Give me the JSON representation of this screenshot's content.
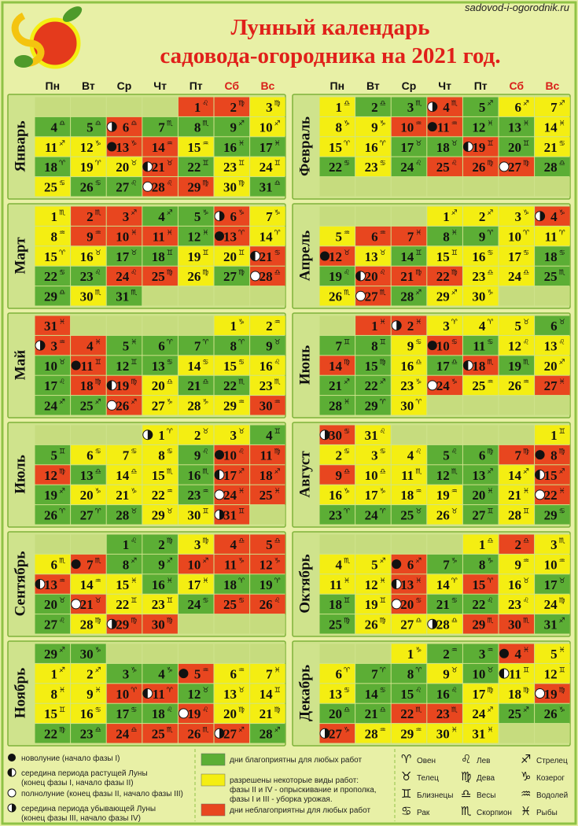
{
  "site": "sadovod-i-ogorodnik.ru",
  "title": [
    "Лунный календарь",
    "садовода-огородника на 2021 год."
  ],
  "weekdays": [
    "Пн",
    "Вт",
    "Ср",
    "Чт",
    "Пт",
    "Сб",
    "Вс"
  ],
  "weekend_color": "#d8201a",
  "day_types": [
    {
      "color": "#5cae35",
      "lines": [
        "дни благоприятны для любых работ"
      ]
    },
    {
      "color": "#f4ee12",
      "lines": [
        "разрешены некоторые виды работ:",
        "фазы II и IV - опрыскивание и прополка,",
        "фазы I и III - уборка урожая."
      ]
    },
    {
      "color": "#e8461f",
      "lines": [
        "дни неблагоприятны для любых работ"
      ]
    }
  ],
  "phase_legend": {
    "new_moon": [
      "новолуние (начало фазы I)"
    ],
    "waxing": [
      "середина периода растущей Луны",
      "(конец фазы I, начало фазы II)"
    ],
    "full_moon": [
      "полнолуние (конец фазы II, начало фазы III)"
    ],
    "waning": [
      "середина периода убывающей Луны",
      "(конец фазы III, начало фазы IV)"
    ]
  },
  "zodiac": [
    {
      "symbol": "♈",
      "name": "Овен"
    },
    {
      "symbol": "♉",
      "name": "Телец"
    },
    {
      "symbol": "♊",
      "name": "Близнецы"
    },
    {
      "symbol": "♋",
      "name": "Рак"
    },
    {
      "symbol": "♌",
      "name": "Лев"
    },
    {
      "symbol": "♍",
      "name": "Дева"
    },
    {
      "symbol": "♎",
      "name": "Весы"
    },
    {
      "symbol": "♏",
      "name": "Скорпион"
    },
    {
      "symbol": "♐",
      "name": "Стрелец"
    },
    {
      "symbol": "♑",
      "name": "Козерог"
    },
    {
      "symbol": "♒",
      "name": "Водолей"
    },
    {
      "symbol": "♓",
      "name": "Рыбы"
    }
  ],
  "months": [
    {
      "name": "Январь",
      "days": [
        1,
        2,
        3,
        4,
        5,
        6,
        7,
        8,
        9,
        10,
        11,
        12,
        13,
        14,
        15,
        16,
        17,
        18,
        19,
        20,
        21,
        22,
        23,
        24,
        25,
        26,
        27,
        28,
        29,
        30,
        31
      ],
      "signs": "♌♍♍♎♎♎♏♏♐♐♐♑♑♒♒♓♓♈♈♉♉♊♊♊♋♋♌♌♍♍♎",
      "types": "2210020001112210001120111002210",
      "new_moon": [
        13
      ],
      "waxing": [
        21
      ],
      "full_moon": [
        28
      ],
      "waning": [
        6
      ]
    },
    {
      "name": "Февраль",
      "days": [
        1,
        2,
        3,
        4,
        5,
        6,
        7,
        8,
        9,
        10,
        11,
        12,
        13,
        14,
        15,
        16,
        17,
        18,
        19,
        20,
        21,
        22,
        23,
        24,
        25,
        26,
        27,
        28
      ],
      "signs": "♎♎♏♏♐♐♐♑♑♒♒♓♓♓♈♈♉♉♊♊♋♋♋♌♌♍♍♎",
      "types": "1002011112200111002010102220",
      "new_moon": [
        11
      ],
      "waxing": [
        19
      ],
      "full_moon": [
        27
      ],
      "waning": [
        4
      ]
    },
    {
      "name": "Март",
      "days": [
        1,
        2,
        3,
        4,
        5,
        6,
        7,
        8,
        9,
        10,
        11,
        12,
        13,
        14,
        15,
        16,
        17,
        18,
        19,
        20,
        21,
        22,
        23,
        24,
        25,
        26,
        27,
        28,
        29,
        30,
        31
      ],
      "signs": "♏♏♐♐♑♑♑♒♒♓♓♓♈♈♈♉♉♊♊♊♋♋♌♌♍♍♍♎♎♏♏",
      "types": "1220021122202111001120022102010",
      "new_moon": [
        13
      ],
      "waxing": [
        21
      ],
      "full_moon": [
        28
      ],
      "waning": [
        6
      ]
    },
    {
      "name": "Апрель",
      "days": [
        1,
        2,
        3,
        4,
        5,
        6,
        7,
        8,
        9,
        10,
        11,
        12,
        13,
        14,
        15,
        16,
        17,
        18,
        19,
        20,
        21,
        22,
        23,
        24,
        25,
        26,
        27,
        28,
        29,
        30
      ],
      "signs": "♐♐♑♑♒♒♓♓♈♈♈♉♉♊♊♋♋♋♌♌♍♍♎♎♏♏♏♐♐♑",
      "types": "111212200112101110022211012011",
      "new_moon": [
        12
      ],
      "waxing": [
        20
      ],
      "full_moon": [
        27
      ],
      "waning": [
        4
      ]
    },
    {
      "name": "Май",
      "days": [
        1,
        2,
        3,
        4,
        5,
        6,
        7,
        8,
        9,
        10,
        11,
        12,
        13,
        14,
        15,
        16,
        17,
        18,
        19,
        20,
        21,
        22,
        23,
        24,
        25,
        26,
        27,
        28,
        29,
        30,
        31
      ],
      "signs": "♑♒♒♓♓♈♈♈♉♉♊♊♋♋♋♌♌♍♍♎♎♏♏♐♐♐♑♑♒♒♓",
      "types": "1122000000200111022100100211122",
      "new_moon": [
        11
      ],
      "waxing": [
        19
      ],
      "full_moon": [
        26
      ],
      "waning": [
        3
      ]
    },
    {
      "name": "Июнь",
      "days": [
        1,
        2,
        3,
        4,
        5,
        6,
        7,
        8,
        9,
        10,
        11,
        12,
        13,
        14,
        15,
        16,
        17,
        18,
        19,
        20,
        21,
        22,
        23,
        24,
        25,
        26,
        27,
        28,
        29,
        30
      ],
      "signs": "♓♓♈♈♉♉♊♊♋♋♋♌♌♍♍♎♎♏♏♐♐♐♑♑♒♒♓♓♈♈",
      "types": "221110001201120102010012112001",
      "new_moon": [
        10
      ],
      "waxing": [
        18
      ],
      "full_moon": [
        24
      ],
      "waning": [
        2
      ]
    },
    {
      "name": "Июль",
      "days": [
        1,
        2,
        3,
        4,
        5,
        6,
        7,
        8,
        9,
        10,
        11,
        12,
        13,
        14,
        15,
        16,
        17,
        18,
        19,
        20,
        21,
        22,
        23,
        24,
        25,
        26,
        27,
        28,
        29,
        30,
        31
      ],
      "signs": "♈♉♉♊♊♋♋♋♌♌♍♍♎♎♏♏♐♐♐♑♑♒♒♓♓♈♈♉♉♊♊",
      "types": "1110011102220110220111022000112",
      "new_moon": [
        10
      ],
      "waxing": [
        17
      ],
      "full_moon": [
        24
      ],
      "waning": [
        1,
        31
      ]
    },
    {
      "name": "Август",
      "days": [
        1,
        2,
        3,
        4,
        5,
        6,
        7,
        8,
        9,
        10,
        11,
        12,
        13,
        14,
        15,
        16,
        17,
        18,
        19,
        20,
        21,
        22,
        23,
        24,
        25,
        26,
        27,
        28,
        29,
        30,
        31
      ],
      "signs": "♊♋♋♌♌♍♍♍♎♎♏♏♐♐♐♑♑♒♒♓♓♓♈♈♉♉♊♊♋♋♌",
      "types": "1111002221100121111012000101021",
      "new_moon": [
        8
      ],
      "waxing": [
        15
      ],
      "full_moon": [
        22
      ],
      "waning": [
        30
      ]
    },
    {
      "name": "Сентябрь",
      "days": [
        1,
        2,
        3,
        4,
        5,
        6,
        7,
        8,
        9,
        10,
        11,
        12,
        13,
        14,
        15,
        16,
        17,
        18,
        19,
        20,
        21,
        22,
        23,
        24,
        25,
        26,
        27,
        28,
        29,
        30
      ],
      "signs": "♌♍♍♎♎♏♏♐♐♐♑♑♒♒♓♓♓♈♈♉♉♊♊♋♋♌♌♍♍♍",
      "types": "001221200222211010002110220122",
      "new_moon": [
        7
      ],
      "waxing": [
        13
      ],
      "full_moon": [
        21
      ],
      "waning": [
        29
      ]
    },
    {
      "name": "Октябрь",
      "days": [
        1,
        2,
        3,
        4,
        5,
        6,
        7,
        8,
        9,
        10,
        11,
        12,
        13,
        14,
        15,
        16,
        17,
        18,
        19,
        20,
        21,
        22,
        23,
        24,
        25,
        26,
        27,
        28,
        29,
        30,
        31
      ],
      "signs": "♎♎♏♏♐♐♑♑♒♒♓♓♓♈♈♉♉♊♊♋♋♌♌♍♍♍♎♎♏♏♐",
      "types": "1211120011112121001200110111220",
      "new_moon": [
        6
      ],
      "waxing": [
        13
      ],
      "full_moon": [
        20
      ],
      "waning": [
        28
      ]
    },
    {
      "name": "Ноябрь",
      "days": [
        1,
        2,
        3,
        4,
        5,
        6,
        7,
        8,
        9,
        10,
        11,
        12,
        13,
        14,
        15,
        16,
        17,
        18,
        19,
        20,
        21,
        22,
        23,
        24,
        25,
        26,
        27,
        28,
        29,
        30
      ],
      "signs": "♐♐♑♑♒♒♓♓♓♈♈♉♉♊♊♋♋♌♌♍♍♍♎♎♏♏♐♐♐♑",
      "types": "110021111220111100211002222000",
      "new_moon": [
        5
      ],
      "waxing": [
        11
      ],
      "full_moon": [
        19
      ],
      "waning": [
        27
      ]
    },
    {
      "name": "Декабрь",
      "days": [
        1,
        2,
        3,
        4,
        5,
        6,
        7,
        8,
        9,
        10,
        11,
        12,
        13,
        14,
        15,
        16,
        17,
        18,
        19,
        20,
        21,
        22,
        23,
        24,
        25,
        26,
        27,
        28,
        29,
        30,
        31
      ],
      "signs": "♑♒♒♓♓♈♈♈♉♉♊♊♋♋♌♌♍♍♍♎♎♏♏♐♐♑♑♒♒♓♓",
      "types": "1002110010111000112002210021111",
      "new_moon": [
        4
      ],
      "waxing": [
        11
      ],
      "full_moon": [
        19
      ],
      "waning": [
        27
      ]
    }
  ]
}
